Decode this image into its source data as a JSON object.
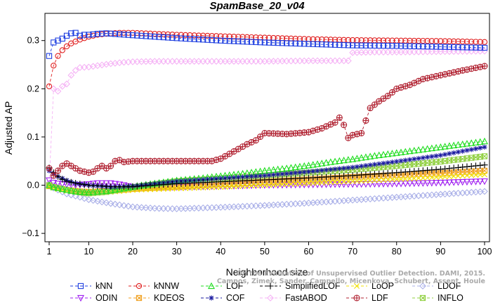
{
  "chart_data": {
    "type": "line",
    "title": "SpamBase_20_v04",
    "xlabel": "Neighborhood size",
    "ylabel": "Adjusted AP",
    "xlim": [
      1,
      100
    ],
    "ylim": [
      -0.1,
      0.35
    ],
    "xticks": [
      1,
      10,
      20,
      30,
      40,
      50,
      60,
      70,
      80,
      90,
      100
    ],
    "yticks": [
      -0.1,
      0.0,
      0.1,
      0.2,
      0.3
    ],
    "ytick_labels": [
      "−0.1",
      "0.0",
      "0.1",
      "0.2",
      "0.3"
    ],
    "grid": false,
    "legend_position": "bottom",
    "watermark": [
      "Campos, Zimek, Sander, Campello, Micenkova, Schubert, Assent, Houle",
      "On the Evaluation of Unsupervised Outlier Detection. DAMI, 2015."
    ],
    "series": [
      {
        "name": "kNN",
        "color": "#1f3fe0",
        "marker": "square",
        "points": [
          [
            1,
            0.268
          ],
          [
            2,
            0.296
          ],
          [
            3,
            0.3
          ],
          [
            4,
            0.304
          ],
          [
            5,
            0.31
          ],
          [
            6,
            0.315
          ],
          [
            7,
            0.316
          ],
          [
            8,
            0.31
          ],
          [
            9,
            0.312
          ],
          [
            10,
            0.312
          ],
          [
            12,
            0.314
          ],
          [
            14,
            0.315
          ],
          [
            17,
            0.313
          ],
          [
            20,
            0.311
          ],
          [
            25,
            0.308
          ],
          [
            30,
            0.305
          ],
          [
            40,
            0.3
          ],
          [
            50,
            0.296
          ],
          [
            60,
            0.293
          ],
          [
            70,
            0.29
          ],
          [
            80,
            0.289
          ],
          [
            90,
            0.287
          ],
          [
            100,
            0.285
          ]
        ]
      },
      {
        "name": "kNNW",
        "color": "#e02020",
        "marker": "circle",
        "points": [
          [
            1,
            0.205
          ],
          [
            2,
            0.248
          ],
          [
            3,
            0.268
          ],
          [
            4,
            0.28
          ],
          [
            5,
            0.288
          ],
          [
            6,
            0.294
          ],
          [
            7,
            0.298
          ],
          [
            8,
            0.302
          ],
          [
            9,
            0.305
          ],
          [
            10,
            0.308
          ],
          [
            12,
            0.312
          ],
          [
            14,
            0.314
          ],
          [
            17,
            0.316
          ],
          [
            20,
            0.316
          ],
          [
            25,
            0.314
          ],
          [
            30,
            0.312
          ],
          [
            40,
            0.309
          ],
          [
            50,
            0.306
          ],
          [
            60,
            0.303
          ],
          [
            70,
            0.301
          ],
          [
            80,
            0.3
          ],
          [
            90,
            0.299
          ],
          [
            100,
            0.297
          ]
        ]
      },
      {
        "name": "LOF",
        "color": "#22dd22",
        "marker": "triangle",
        "points": [
          [
            1,
            0.0
          ],
          [
            2,
            -0.004
          ],
          [
            3,
            -0.006
          ],
          [
            4,
            -0.008
          ],
          [
            5,
            -0.01
          ],
          [
            7,
            -0.013
          ],
          [
            10,
            -0.015
          ],
          [
            14,
            -0.012
          ],
          [
            18,
            -0.006
          ],
          [
            22,
            0.0
          ],
          [
            26,
            0.005
          ],
          [
            30,
            0.01
          ],
          [
            35,
            0.014
          ],
          [
            40,
            0.019
          ],
          [
            45,
            0.024
          ],
          [
            50,
            0.03
          ],
          [
            55,
            0.035
          ],
          [
            60,
            0.041
          ],
          [
            65,
            0.048
          ],
          [
            70,
            0.054
          ],
          [
            75,
            0.061
          ],
          [
            80,
            0.067
          ],
          [
            85,
            0.073
          ],
          [
            90,
            0.079
          ],
          [
            95,
            0.085
          ],
          [
            100,
            0.091
          ]
        ]
      },
      {
        "name": "SimplifiedLOF",
        "color": "#000000",
        "marker": "plus",
        "points": [
          [
            1,
            0.036
          ],
          [
            2,
            0.026
          ],
          [
            3,
            0.018
          ],
          [
            4,
            0.012
          ],
          [
            5,
            0.008
          ],
          [
            7,
            0.004
          ],
          [
            10,
            0.0
          ],
          [
            15,
            -0.003
          ],
          [
            20,
            -0.003
          ],
          [
            25,
            0.0
          ],
          [
            30,
            0.003
          ],
          [
            40,
            0.007
          ],
          [
            50,
            0.011
          ],
          [
            60,
            0.015
          ],
          [
            70,
            0.02
          ],
          [
            80,
            0.026
          ],
          [
            90,
            0.033
          ],
          [
            100,
            0.042
          ]
        ]
      },
      {
        "name": "LoOP",
        "color": "#f0e000",
        "marker": "x",
        "points": [
          [
            1,
            -0.003
          ],
          [
            3,
            -0.008
          ],
          [
            5,
            -0.012
          ],
          [
            8,
            -0.015
          ],
          [
            10,
            -0.016
          ],
          [
            15,
            -0.014
          ],
          [
            20,
            -0.01
          ],
          [
            30,
            -0.007
          ],
          [
            40,
            -0.004
          ],
          [
            50,
            0.0
          ],
          [
            60,
            0.004
          ],
          [
            70,
            0.008
          ],
          [
            80,
            0.012
          ],
          [
            90,
            0.017
          ],
          [
            100,
            0.022
          ]
        ]
      },
      {
        "name": "LDOF",
        "color": "#aab0e8",
        "marker": "diamond",
        "points": [
          [
            1,
            -0.002
          ],
          [
            3,
            -0.01
          ],
          [
            5,
            -0.018
          ],
          [
            8,
            -0.025
          ],
          [
            10,
            -0.03
          ],
          [
            15,
            -0.038
          ],
          [
            20,
            -0.045
          ],
          [
            25,
            -0.048
          ],
          [
            30,
            -0.049
          ],
          [
            40,
            -0.046
          ],
          [
            50,
            -0.042
          ],
          [
            60,
            -0.037
          ],
          [
            70,
            -0.031
          ],
          [
            80,
            -0.025
          ],
          [
            90,
            -0.019
          ],
          [
            100,
            -0.013
          ]
        ]
      },
      {
        "name": "ODIN",
        "color": "#a020f0",
        "marker": "triangle-down",
        "points": [
          [
            1,
            0.01
          ],
          [
            2,
            0.005
          ],
          [
            3,
            0.003
          ],
          [
            5,
            0.001
          ],
          [
            7,
            0.0
          ],
          [
            10,
            0.002
          ],
          [
            12,
            0.004
          ],
          [
            15,
            0.004
          ],
          [
            18,
            0.0
          ],
          [
            20,
            -0.004
          ],
          [
            25,
            -0.005
          ],
          [
            30,
            -0.004
          ],
          [
            40,
            -0.002
          ],
          [
            50,
            0.0
          ],
          [
            60,
            0.001
          ],
          [
            70,
            0.002
          ],
          [
            80,
            0.003
          ],
          [
            90,
            0.005
          ],
          [
            100,
            0.008
          ]
        ]
      },
      {
        "name": "KDEOS",
        "color": "#f0a020",
        "marker": "square-x",
        "points": [
          [
            1,
            -0.002
          ],
          [
            3,
            -0.006
          ],
          [
            5,
            -0.01
          ],
          [
            8,
            -0.013
          ],
          [
            10,
            -0.014
          ],
          [
            15,
            -0.012
          ],
          [
            20,
            -0.008
          ],
          [
            30,
            -0.003
          ],
          [
            40,
            0.002
          ],
          [
            50,
            0.007
          ],
          [
            60,
            0.012
          ],
          [
            70,
            0.017
          ],
          [
            80,
            0.021
          ],
          [
            90,
            0.025
          ],
          [
            100,
            0.03
          ]
        ]
      },
      {
        "name": "COF",
        "color": "#1a1aa0",
        "marker": "star",
        "points": [
          [
            1,
            0.03
          ],
          [
            2,
            0.024
          ],
          [
            3,
            0.018
          ],
          [
            5,
            0.01
          ],
          [
            7,
            0.004
          ],
          [
            10,
            0.0
          ],
          [
            15,
            -0.004
          ],
          [
            20,
            -0.002
          ],
          [
            25,
            0.003
          ],
          [
            30,
            0.008
          ],
          [
            40,
            0.014
          ],
          [
            50,
            0.02
          ],
          [
            60,
            0.028
          ],
          [
            70,
            0.037
          ],
          [
            80,
            0.049
          ],
          [
            90,
            0.062
          ],
          [
            100,
            0.079
          ]
        ]
      },
      {
        "name": "FastABOD",
        "color": "#f5b3f5",
        "marker": "diamond",
        "points": [
          [
            1,
            0.005
          ],
          [
            2,
            0.2
          ],
          [
            3,
            0.195
          ],
          [
            4,
            0.205
          ],
          [
            5,
            0.21
          ],
          [
            6,
            0.228
          ],
          [
            7,
            0.238
          ],
          [
            8,
            0.244
          ],
          [
            10,
            0.245
          ],
          [
            12,
            0.248
          ],
          [
            15,
            0.252
          ],
          [
            18,
            0.255
          ],
          [
            20,
            0.256
          ],
          [
            25,
            0.257
          ],
          [
            30,
            0.257
          ],
          [
            40,
            0.257
          ],
          [
            50,
            0.257
          ],
          [
            60,
            0.258
          ],
          [
            68,
            0.258
          ],
          [
            69,
            0.258
          ],
          [
            70,
            0.275
          ],
          [
            75,
            0.276
          ],
          [
            80,
            0.276
          ],
          [
            90,
            0.277
          ],
          [
            100,
            0.278
          ]
        ]
      },
      {
        "name": "LDF",
        "color": "#b02030",
        "marker": "circle-plus",
        "points": [
          [
            1,
            0.035
          ],
          [
            2,
            0.02
          ],
          [
            3,
            0.03
          ],
          [
            4,
            0.04
          ],
          [
            5,
            0.045
          ],
          [
            6,
            0.04
          ],
          [
            7,
            0.035
          ],
          [
            8,
            0.03
          ],
          [
            9,
            0.028
          ],
          [
            10,
            0.026
          ],
          [
            11,
            0.028
          ],
          [
            12,
            0.035
          ],
          [
            13,
            0.04
          ],
          [
            14,
            0.035
          ],
          [
            15,
            0.04
          ],
          [
            16,
            0.05
          ],
          [
            17,
            0.052
          ],
          [
            18,
            0.048
          ],
          [
            20,
            0.05
          ],
          [
            25,
            0.05
          ],
          [
            30,
            0.05
          ],
          [
            35,
            0.05
          ],
          [
            38,
            0.05
          ],
          [
            40,
            0.055
          ],
          [
            42,
            0.065
          ],
          [
            44,
            0.075
          ],
          [
            46,
            0.085
          ],
          [
            48,
            0.093
          ],
          [
            50,
            0.108
          ],
          [
            55,
            0.106
          ],
          [
            60,
            0.11
          ],
          [
            63,
            0.118
          ],
          [
            66,
            0.13
          ],
          [
            67,
            0.14
          ],
          [
            68,
            0.125
          ],
          [
            69,
            0.098
          ],
          [
            70,
            0.104
          ],
          [
            72,
            0.108
          ],
          [
            74,
            0.16
          ],
          [
            76,
            0.174
          ],
          [
            78,
            0.185
          ],
          [
            80,
            0.2
          ],
          [
            83,
            0.208
          ],
          [
            86,
            0.22
          ],
          [
            90,
            0.228
          ],
          [
            95,
            0.238
          ],
          [
            100,
            0.247
          ]
        ]
      },
      {
        "name": "INFLO",
        "color": "#90d040",
        "marker": "square-x",
        "points": [
          [
            1,
            0.0
          ],
          [
            2,
            -0.004
          ],
          [
            4,
            -0.008
          ],
          [
            6,
            -0.012
          ],
          [
            8,
            -0.015
          ],
          [
            10,
            -0.017
          ],
          [
            14,
            -0.014
          ],
          [
            18,
            -0.008
          ],
          [
            22,
            -0.002
          ],
          [
            26,
            0.003
          ],
          [
            30,
            0.008
          ],
          [
            40,
            0.014
          ],
          [
            50,
            0.02
          ],
          [
            60,
            0.026
          ],
          [
            70,
            0.032
          ],
          [
            80,
            0.04
          ],
          [
            90,
            0.049
          ],
          [
            100,
            0.06
          ]
        ]
      }
    ]
  }
}
